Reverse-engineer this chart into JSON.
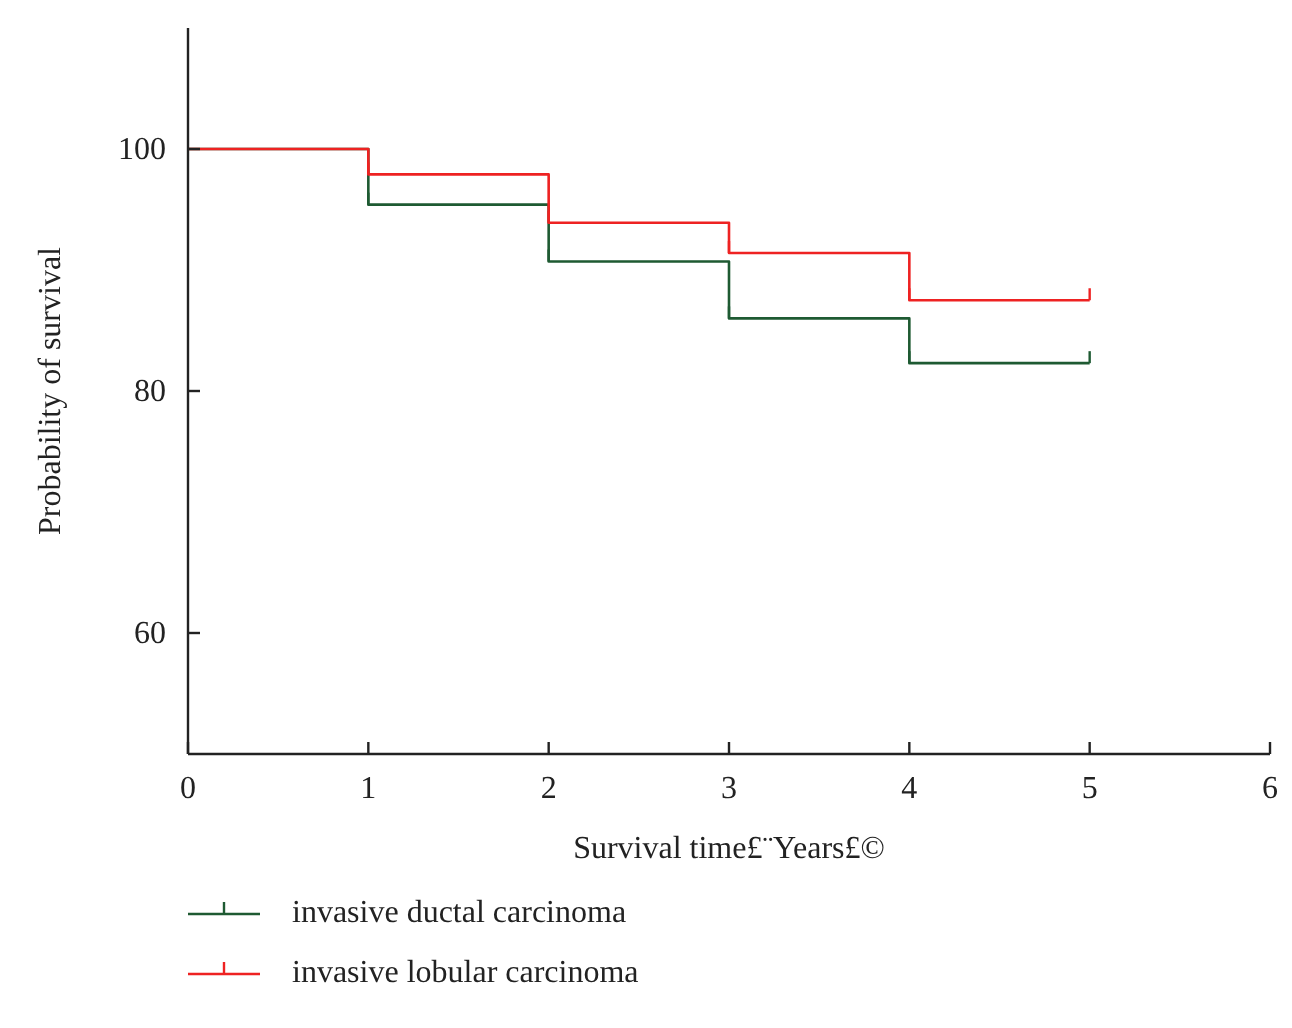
{
  "chart_data": {
    "type": "step",
    "xlabel": "Survival time£¨Years£©",
    "ylabel": "Probability of survival",
    "x": [
      0,
      1,
      2,
      3,
      4,
      5
    ],
    "series": [
      {
        "name": "invasive ductal carcinoma",
        "color": "#1e5a32",
        "values": [
          100,
          95.4,
          90.7,
          86,
          82.3,
          82.3
        ]
      },
      {
        "name": "invasive lobular carcinoma",
        "color": "#ee2222",
        "values": [
          100,
          97.9,
          93.9,
          91.4,
          87.5,
          87.5
        ]
      }
    ],
    "xlim": [
      0,
      6
    ],
    "xticks": [
      0,
      1,
      2,
      3,
      4,
      5,
      6
    ],
    "ylim": [
      50,
      110
    ],
    "yticks": [
      60,
      80,
      100
    ],
    "grid": false,
    "legend": "bottom"
  }
}
